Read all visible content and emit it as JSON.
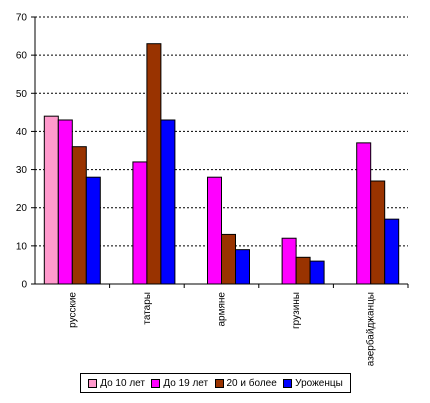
{
  "chart_data": {
    "type": "bar",
    "categories": [
      "русские",
      "татары",
      "армяне",
      "грузины",
      "азербайджанцы"
    ],
    "series": [
      {
        "name": "До 10 лет",
        "color": "#ff99cc",
        "values": [
          44,
          null,
          null,
          null,
          null
        ]
      },
      {
        "name": "До 19 лет",
        "color": "#ff00ff",
        "values": [
          43,
          32,
          28,
          12,
          37
        ]
      },
      {
        "name": "20 и более",
        "color": "#993300",
        "values": [
          36,
          63,
          13,
          7,
          27
        ]
      },
      {
        "name": "Уроженцы",
        "color": "#0000ff",
        "values": [
          28,
          43,
          9,
          6,
          17
        ]
      }
    ],
    "ylim": [
      0,
      70
    ],
    "yticks": [
      "0",
      "10",
      "20",
      "30",
      "40",
      "50",
      "60",
      "70"
    ],
    "grid": true,
    "legend": "bottom",
    "title": "",
    "xlabel": "",
    "ylabel": ""
  }
}
